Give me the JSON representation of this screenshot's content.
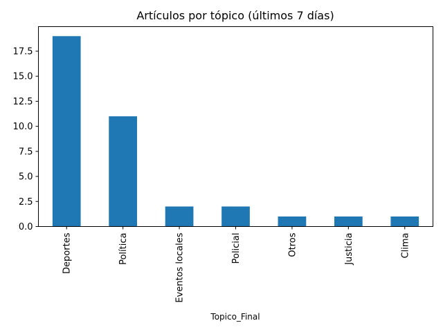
{
  "chart_data": {
    "type": "bar",
    "title": "Artículos por tópico (últimos 7 días)",
    "xlabel": "Topico_Final",
    "ylabel": "",
    "categories": [
      "Deportes",
      "Política",
      "Eventos locales",
      "Policial",
      "Otros",
      "Justicia",
      "Clima"
    ],
    "values": [
      19,
      11,
      2,
      2,
      1,
      1,
      1
    ],
    "ylim": [
      0,
      19.95
    ],
    "yticks": [
      0.0,
      2.5,
      5.0,
      7.5,
      10.0,
      12.5,
      15.0,
      17.5
    ],
    "ytick_labels": [
      "0.0",
      "2.5",
      "5.0",
      "7.5",
      "10.0",
      "12.5",
      "15.0",
      "17.5"
    ],
    "bar_color": "#1f77b4",
    "grid": false,
    "legend": "none"
  }
}
